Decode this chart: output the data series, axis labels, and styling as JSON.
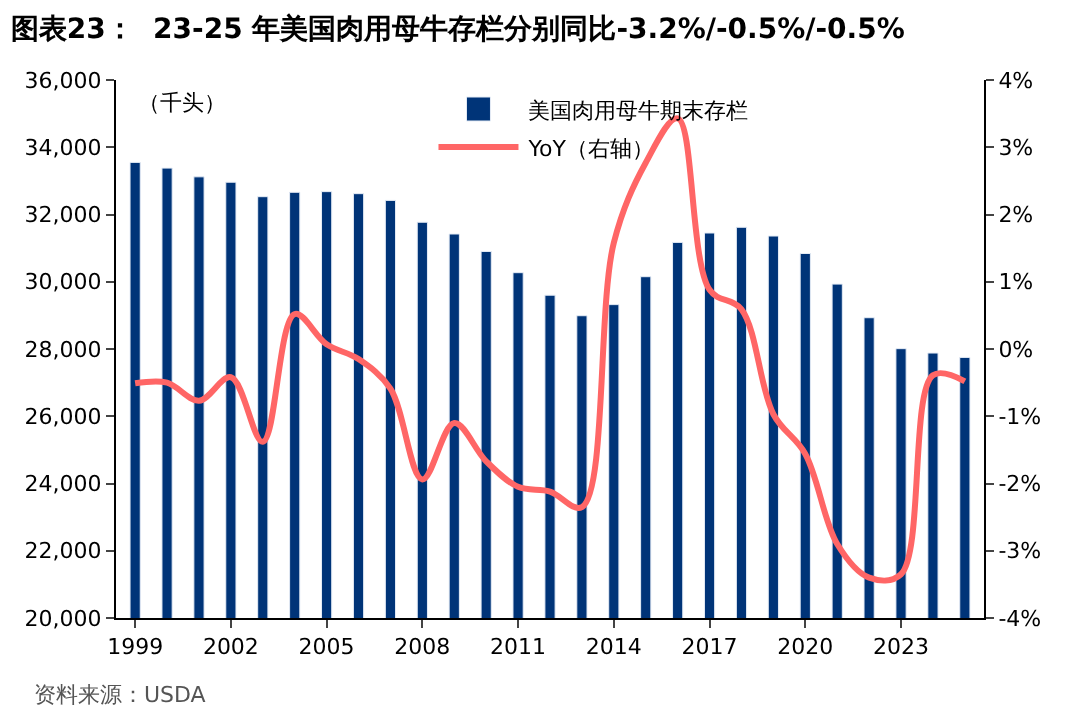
{
  "chart_data": {
    "type": "bar",
    "title": "图表23：  23-25 年美国肉用母牛存栏分别同比-3.2%/-0.5%/-0.5%",
    "ylabel": "（千头）",
    "annotations": [
      "资料来源：USDA"
    ],
    "categories": [
      "1999",
      null,
      null,
      "2002",
      null,
      null,
      "2005",
      null,
      null,
      "2008",
      null,
      null,
      "2011",
      null,
      null,
      "2014",
      null,
      null,
      "2017",
      null,
      null,
      "2020",
      null,
      null,
      "2023",
      null,
      null
    ],
    "series": [
      {
        "name": "美国肉用母牛期末存栏",
        "color": "#003478",
        "values": [
          33550,
          33380,
          33120,
          32960,
          32530,
          32660,
          32680,
          32620,
          32420,
          31770,
          31420,
          30900,
          30270,
          29600,
          28990,
          29320,
          30150,
          31170,
          31450,
          31620,
          31360,
          30840,
          29930,
          28930,
          28010,
          27880,
          27750
        ]
      },
      {
        "name": "YoY（右轴）",
        "type": "line",
        "axis": "y2",
        "color": "#ff6666",
        "values": [
          -0.51,
          -0.5,
          -0.77,
          -0.42,
          -1.38,
          0.52,
          0.07,
          -0.15,
          -0.59,
          -1.94,
          -1.1,
          -1.67,
          -2.05,
          -2.12,
          -2.35,
          1.58,
          2.77,
          3.43,
          0.88,
          0.59,
          -0.97,
          -1.56,
          -2.9,
          -3.4,
          -3.35,
          -0.39,
          -0.48
        ]
      }
    ],
    "ylim": [
      20000,
      36000
    ],
    "yticks": [
      {
        "value": 20000,
        "label": "20,000"
      },
      {
        "value": 22000,
        "label": "22,000"
      },
      {
        "value": 24000,
        "label": "24,000"
      },
      {
        "value": 26000,
        "label": "26,000"
      },
      {
        "value": 28000,
        "label": "28,000"
      },
      {
        "value": 30000,
        "label": "30,000"
      },
      {
        "value": 32000,
        "label": "32,000"
      },
      {
        "value": 34000,
        "label": "34,000"
      },
      {
        "value": 36000,
        "label": "36,000"
      }
    ],
    "y2lim": [
      -4,
      4
    ],
    "y2ticks": [
      {
        "value": -4,
        "label": "-4%"
      },
      {
        "value": -3,
        "label": "-3%"
      },
      {
        "value": -2,
        "label": "-2%"
      },
      {
        "value": -1,
        "label": "-1%"
      },
      {
        "value": 0,
        "label": "0%"
      },
      {
        "value": 1,
        "label": "1%"
      },
      {
        "value": 2,
        "label": "2%"
      },
      {
        "value": 3,
        "label": "3%"
      },
      {
        "value": 4,
        "label": "4%"
      }
    ],
    "legend": "top",
    "marker": "none"
  }
}
